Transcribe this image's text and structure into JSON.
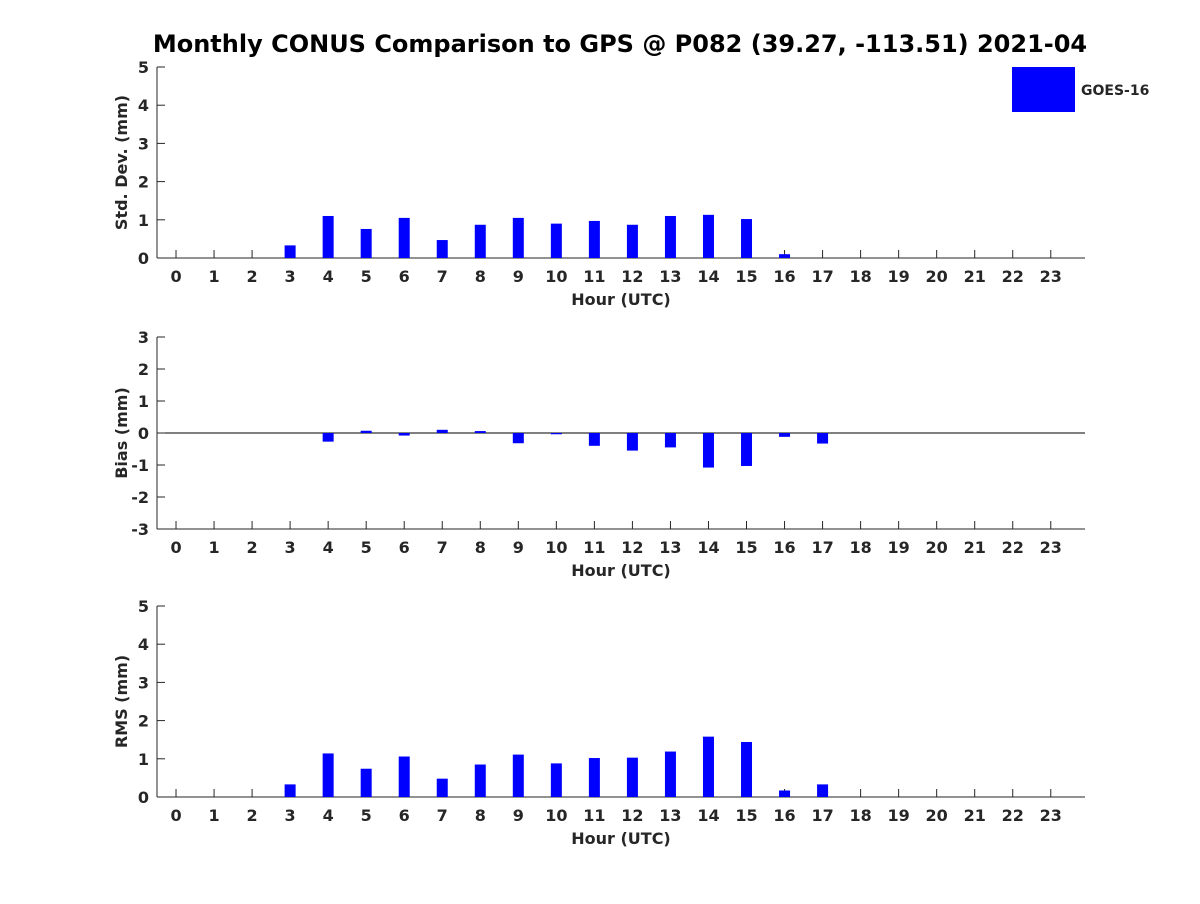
{
  "figure": {
    "title": "Monthly CONUS Comparison to GPS @ P082 (39.27, -113.51) 2021-04",
    "legend": {
      "label": "GOES-16",
      "color": "#0000ff",
      "placement": "top-right"
    }
  },
  "chart_data": [
    {
      "type": "bar",
      "name": "std-dev",
      "ylabel": "Std. Dev. (mm)",
      "xlabel": "Hour (UTC)",
      "ylim": [
        0,
        5
      ],
      "yticks": [
        "0",
        "1",
        "2",
        "3",
        "4",
        "5"
      ],
      "categories": [
        "0",
        "1",
        "2",
        "3",
        "4",
        "5",
        "6",
        "7",
        "8",
        "9",
        "10",
        "11",
        "12",
        "13",
        "14",
        "15",
        "16",
        "17",
        "18",
        "19",
        "20",
        "21",
        "22",
        "23"
      ],
      "series": [
        {
          "name": "GOES-16",
          "color": "#0000ff",
          "values": [
            0,
            0,
            0,
            0.33,
            1.1,
            0.76,
            1.05,
            0.47,
            0.87,
            1.05,
            0.9,
            0.97,
            0.87,
            1.1,
            1.13,
            1.02,
            0.1,
            0,
            0,
            0,
            0,
            0,
            0,
            0
          ]
        }
      ]
    },
    {
      "type": "bar",
      "name": "bias",
      "ylabel": "Bias (mm)",
      "xlabel": "Hour (UTC)",
      "ylim": [
        -3,
        3
      ],
      "yticks": [
        "-3",
        "-2",
        "-1",
        "0",
        "1",
        "2",
        "3"
      ],
      "zero_line": true,
      "categories": [
        "0",
        "1",
        "2",
        "3",
        "4",
        "5",
        "6",
        "7",
        "8",
        "9",
        "10",
        "11",
        "12",
        "13",
        "14",
        "15",
        "16",
        "17",
        "18",
        "19",
        "20",
        "21",
        "22",
        "23"
      ],
      "series": [
        {
          "name": "GOES-16",
          "color": "#0000ff",
          "values": [
            0,
            0,
            0,
            0,
            -0.27,
            0.07,
            -0.08,
            0.1,
            0.06,
            -0.32,
            -0.04,
            -0.4,
            -0.55,
            -0.45,
            -1.08,
            -1.03,
            -0.12,
            -0.33,
            0,
            0,
            0,
            0,
            0,
            0
          ]
        }
      ]
    },
    {
      "type": "bar",
      "name": "rms",
      "ylabel": "RMS (mm)",
      "xlabel": "Hour (UTC)",
      "ylim": [
        0,
        5
      ],
      "yticks": [
        "0",
        "1",
        "2",
        "3",
        "4",
        "5"
      ],
      "categories": [
        "0",
        "1",
        "2",
        "3",
        "4",
        "5",
        "6",
        "7",
        "8",
        "9",
        "10",
        "11",
        "12",
        "13",
        "14",
        "15",
        "16",
        "17",
        "18",
        "19",
        "20",
        "21",
        "22",
        "23"
      ],
      "series": [
        {
          "name": "GOES-16",
          "color": "#0000ff",
          "values": [
            0,
            0,
            0,
            0.33,
            1.14,
            0.74,
            1.06,
            0.48,
            0.85,
            1.11,
            0.88,
            1.02,
            1.03,
            1.19,
            1.58,
            1.44,
            0.17,
            0.33,
            0,
            0,
            0,
            0,
            0,
            0
          ]
        }
      ]
    }
  ]
}
